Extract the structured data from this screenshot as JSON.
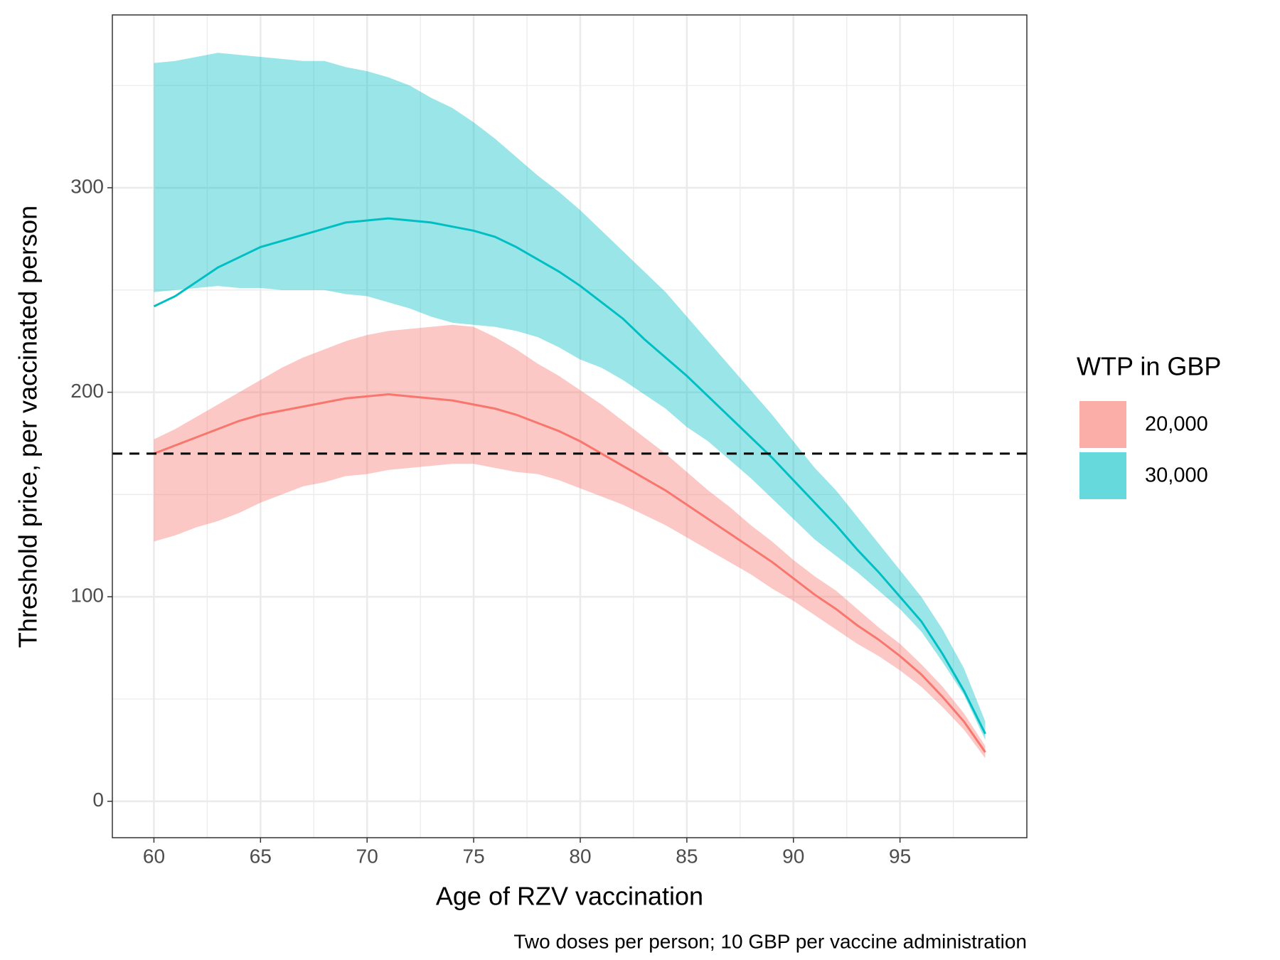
{
  "chart_data": {
    "type": "line_band",
    "x_label": "Age of RZV vaccination",
    "y_label": "Threshold price, per vaccinated person",
    "caption": "Two doses per person; 10 GBP per vaccine administration",
    "legend_title": "WTP in GBP",
    "legend_position": "right",
    "grid": true,
    "x": [
      60,
      61,
      62,
      63,
      64,
      65,
      66,
      67,
      68,
      69,
      70,
      71,
      72,
      73,
      74,
      75,
      76,
      77,
      78,
      79,
      80,
      81,
      82,
      83,
      84,
      85,
      86,
      87,
      88,
      89,
      90,
      91,
      92,
      93,
      94,
      95,
      96,
      97,
      98,
      99
    ],
    "series": [
      {
        "name": "20,000",
        "color": "#F8766D",
        "values": [
          170,
          174,
          178,
          182,
          186,
          189,
          191,
          193,
          195,
          197,
          198,
          199,
          198,
          197,
          196,
          194,
          192,
          189,
          185,
          181,
          176,
          170,
          164,
          158,
          152,
          145,
          138,
          131,
          124,
          117,
          109,
          101,
          94,
          86,
          79,
          71,
          62,
          51,
          39,
          24
        ],
        "upper": [
          177,
          182,
          188,
          194,
          200,
          206,
          212,
          217,
          221,
          225,
          228,
          230,
          231,
          232,
          233,
          232,
          227,
          221,
          214,
          208,
          201,
          194,
          186,
          178,
          170,
          161,
          152,
          144,
          135,
          127,
          118,
          110,
          103,
          94,
          85,
          77,
          67,
          56,
          43,
          27
        ],
        "lower": [
          127,
          130,
          134,
          137,
          141,
          146,
          150,
          154,
          156,
          159,
          160,
          162,
          163,
          164,
          165,
          165,
          163,
          161,
          160,
          157,
          153,
          149,
          145,
          140,
          135,
          129,
          123,
          117,
          111,
          104,
          98,
          91,
          84,
          77,
          71,
          64,
          56,
          46,
          35,
          21
        ]
      },
      {
        "name": "30,000",
        "color": "#00BFC4",
        "values": [
          242,
          247,
          254,
          261,
          266,
          271,
          274,
          277,
          280,
          283,
          284,
          285,
          284,
          283,
          281,
          279,
          276,
          271,
          265,
          259,
          252,
          244,
          236,
          226,
          217,
          208,
          198,
          188,
          178,
          168,
          157,
          146,
          135,
          123,
          112,
          100,
          88,
          72,
          54,
          33
        ],
        "upper": [
          361,
          362,
          364,
          366,
          365,
          364,
          363,
          362,
          362,
          359,
          357,
          354,
          350,
          344,
          339,
          332,
          324,
          315,
          306,
          298,
          289,
          279,
          269,
          259,
          249,
          237,
          225,
          213,
          201,
          189,
          176,
          163,
          152,
          139,
          126,
          113,
          100,
          84,
          65,
          39
        ],
        "lower": [
          249,
          250,
          251,
          252,
          251,
          251,
          250,
          250,
          250,
          248,
          247,
          244,
          241,
          237,
          234,
          233,
          232,
          230,
          227,
          222,
          216,
          212,
          206,
          199,
          192,
          183,
          176,
          167,
          158,
          148,
          138,
          128,
          120,
          112,
          103,
          94,
          83,
          68,
          52,
          30
        ]
      }
    ],
    "hline": 170,
    "xlim": [
      58.05,
      100.95
    ],
    "ylim": [
      -17.8,
      384.5
    ],
    "xticks": [
      60,
      65,
      70,
      75,
      80,
      85,
      90,
      95
    ],
    "yticks": [
      0,
      100,
      200,
      300
    ],
    "minor_xticks": [
      62.5,
      67.5,
      72.5,
      77.5,
      82.5,
      87.5,
      92.5,
      97.5
    ],
    "minor_yticks": [
      50,
      150,
      250,
      350
    ]
  }
}
